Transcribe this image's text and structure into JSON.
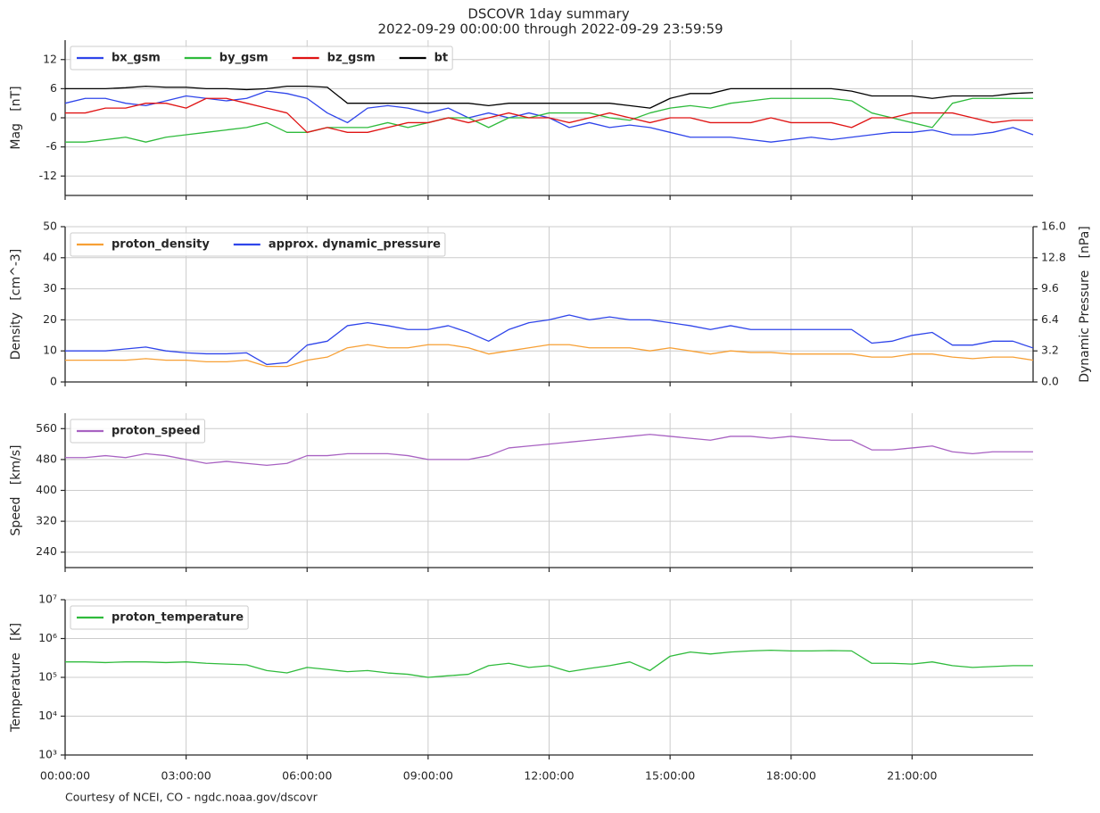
{
  "title": "DSCOVR 1day summary",
  "subtitle": "2022-09-29 00:00:00 through 2022-09-29 23:59:59",
  "footer": "Courtesy of NCEI, CO - ngdc.noaa.gov/dscovr",
  "chart_data": [
    {
      "type": "line",
      "ylabel": "Mag   [nT]",
      "legend": "upper left",
      "grid": true,
      "xlim": [
        0,
        24
      ],
      "xticks": [
        0,
        3,
        6,
        9,
        12,
        15,
        18,
        21
      ],
      "ylim": [
        -16,
        16
      ],
      "yticks": [
        -12,
        -6,
        0,
        6,
        12
      ],
      "x": [
        0,
        0.5,
        1,
        1.5,
        2,
        2.5,
        3,
        3.5,
        4,
        4.5,
        5,
        5.5,
        6,
        6.5,
        7,
        7.5,
        8,
        8.5,
        9,
        9.5,
        10,
        10.5,
        11,
        11.5,
        12,
        12.5,
        13,
        13.5,
        14,
        14.5,
        15,
        15.5,
        16,
        16.5,
        17,
        17.5,
        18,
        18.5,
        19,
        19.5,
        20,
        20.5,
        21,
        21.5,
        22,
        22.5,
        23,
        23.5,
        24
      ],
      "series": [
        {
          "name": "bx_gsm",
          "color": "#2f45ea",
          "values": [
            3,
            4,
            4,
            3,
            2.5,
            3.5,
            4.5,
            4,
            3.5,
            4,
            5.5,
            5,
            4,
            1,
            -1,
            2,
            2.5,
            2,
            1,
            2,
            0,
            1,
            0,
            1,
            0,
            -2,
            -1,
            -2,
            -1.5,
            -2,
            -3,
            -4,
            -4,
            -4,
            -4.5,
            -5,
            -4.5,
            -4,
            -4.5,
            -4,
            -3.5,
            -3,
            -3,
            -2.5,
            -3.5,
            -3.5,
            -3,
            -2,
            -3.5
          ]
        },
        {
          "name": "by_gsm",
          "color": "#2fbb3c",
          "values": [
            -5,
            -5,
            -4.5,
            -4,
            -5,
            -4,
            -3.5,
            -3,
            -2.5,
            -2,
            -1,
            -3,
            -3,
            -2,
            -2,
            -2,
            -1,
            -2,
            -1,
            0,
            0,
            -2,
            0,
            0,
            1,
            1,
            1,
            0,
            -0.5,
            1,
            2,
            2.5,
            2,
            3,
            3.5,
            4,
            4,
            4,
            4,
            3.5,
            1,
            0,
            -1,
            -2,
            3,
            4,
            4,
            4,
            4
          ]
        },
        {
          "name": "bz_gsm",
          "color": "#e01414",
          "values": [
            1,
            1,
            2,
            2,
            3,
            3,
            2,
            4,
            4,
            3,
            2,
            1,
            -3,
            -2,
            -3,
            -3,
            -2,
            -1,
            -1,
            0,
            -1,
            0,
            1,
            0,
            0,
            -1,
            0,
            1,
            0,
            -1,
            0,
            0,
            -1,
            -1,
            -1,
            0,
            -1,
            -1,
            -1,
            -2,
            0,
            0,
            1,
            1,
            1,
            0,
            -1,
            -0.5,
            -0.5
          ]
        },
        {
          "name": "bt",
          "color": "#000000",
          "values": [
            6,
            6,
            6,
            6.2,
            6.5,
            6.3,
            6.3,
            6,
            6,
            5.8,
            6,
            6.5,
            6.5,
            6.3,
            3,
            3,
            3,
            3,
            3,
            3,
            3,
            2.5,
            3,
            3,
            3,
            3,
            3,
            3,
            2.5,
            2,
            4,
            5,
            5,
            6,
            6,
            6,
            6,
            6,
            6,
            5.5,
            4.5,
            4.5,
            4.5,
            4,
            4.5,
            4.5,
            4.5,
            5,
            5.2
          ]
        }
      ]
    },
    {
      "type": "line",
      "ylabel": "Density   [cm^-3]",
      "y2label": "Dynamic Pressure   [nPa]",
      "legend": "upper left",
      "grid": true,
      "xlim": [
        0,
        24
      ],
      "xticks": [
        0,
        3,
        6,
        9,
        12,
        15,
        18,
        21
      ],
      "ylim": [
        0,
        50
      ],
      "yticks": [
        0,
        10,
        20,
        30,
        40,
        50
      ],
      "y2lim": [
        0,
        16
      ],
      "y2ticks": [
        {
          "value": 0,
          "label": "0.0"
        },
        3.2,
        6.4,
        9.6,
        12.8,
        {
          "value": 16,
          "label": "16.0"
        }
      ],
      "x": [
        0,
        0.5,
        1,
        1.5,
        2,
        2.5,
        3,
        3.5,
        4,
        4.5,
        5,
        5.5,
        6,
        6.5,
        7,
        7.5,
        8,
        8.5,
        9,
        9.5,
        10,
        10.5,
        11,
        11.5,
        12,
        12.5,
        13,
        13.5,
        14,
        14.5,
        15,
        15.5,
        16,
        16.5,
        17,
        17.5,
        18,
        18.5,
        19,
        19.5,
        20,
        20.5,
        21,
        21.5,
        22,
        22.5,
        23,
        23.5,
        24
      ],
      "series": [
        {
          "name": "proton_density",
          "color": "#f7a035",
          "values": [
            7,
            7,
            7,
            7,
            7.5,
            7,
            7,
            6.5,
            6.5,
            7,
            5,
            5,
            7,
            8,
            11,
            12,
            11,
            11,
            12,
            12,
            11,
            9,
            10,
            11,
            12,
            12,
            11,
            11,
            11,
            10,
            11,
            10,
            9,
            10,
            9.5,
            9.5,
            9,
            9,
            9,
            9,
            8,
            8,
            9,
            9,
            8,
            7.5,
            8,
            8,
            7
          ]
        },
        {
          "name": "approx. dynamic_pressure",
          "color": "#2f45ea",
          "axis": "y2",
          "values": [
            3.2,
            3.2,
            3.2,
            3.4,
            3.6,
            3.2,
            3.0,
            2.9,
            2.9,
            3.0,
            1.8,
            2.0,
            3.8,
            4.2,
            5.8,
            6.1,
            5.8,
            5.4,
            5.4,
            5.8,
            5.1,
            4.2,
            5.4,
            6.1,
            6.4,
            6.9,
            6.4,
            6.7,
            6.4,
            6.4,
            6.1,
            5.8,
            5.4,
            5.8,
            5.4,
            5.4,
            5.4,
            5.4,
            5.4,
            5.4,
            4.0,
            4.2,
            4.8,
            5.1,
            3.8,
            3.8,
            4.2,
            4.2,
            3.5
          ]
        }
      ]
    },
    {
      "type": "line",
      "ylabel": "Speed   [km/s]",
      "legend": "upper left",
      "grid": true,
      "xlim": [
        0,
        24
      ],
      "xticks": [
        0,
        3,
        6,
        9,
        12,
        15,
        18,
        21
      ],
      "ylim": [
        200,
        600
      ],
      "yticks": [
        240,
        320,
        400,
        480,
        560
      ],
      "x": [
        0,
        0.5,
        1,
        1.5,
        2,
        2.5,
        3,
        3.5,
        4,
        4.5,
        5,
        5.5,
        6,
        6.5,
        7,
        7.5,
        8,
        8.5,
        9,
        9.5,
        10,
        10.5,
        11,
        11.5,
        12,
        12.5,
        13,
        13.5,
        14,
        14.5,
        15,
        15.5,
        16,
        16.5,
        17,
        17.5,
        18,
        18.5,
        19,
        19.5,
        20,
        20.5,
        21,
        21.5,
        22,
        22.5,
        23,
        23.5,
        24
      ],
      "series": [
        {
          "name": "proton_speed",
          "color": "#a862c2",
          "values": [
            485,
            485,
            490,
            485,
            495,
            490,
            480,
            470,
            475,
            470,
            465,
            470,
            490,
            490,
            495,
            495,
            495,
            490,
            480,
            480,
            480,
            490,
            510,
            515,
            520,
            525,
            530,
            535,
            540,
            545,
            540,
            535,
            530,
            540,
            540,
            535,
            540,
            535,
            530,
            530,
            505,
            505,
            510,
            515,
            500,
            495,
            500,
            500,
            500
          ]
        }
      ]
    },
    {
      "type": "line",
      "ylabel": "Temperature   [K]",
      "legend": "upper left",
      "grid": true,
      "yscale": "log",
      "xlim": [
        0,
        24
      ],
      "xticks": [
        {
          "value": 0,
          "label": "00:00:00"
        },
        {
          "value": 3,
          "label": "03:00:00"
        },
        {
          "value": 6,
          "label": "06:00:00"
        },
        {
          "value": 9,
          "label": "09:00:00"
        },
        {
          "value": 12,
          "label": "12:00:00"
        },
        {
          "value": 15,
          "label": "15:00:00"
        },
        {
          "value": 18,
          "label": "18:00:00"
        },
        {
          "value": 21,
          "label": "21:00:00"
        }
      ],
      "ylim": [
        1000,
        10000000
      ],
      "yticks": [
        {
          "value": 1000,
          "label": "10³"
        },
        {
          "value": 10000,
          "label": "10⁴"
        },
        {
          "value": 100000,
          "label": "10⁵"
        },
        {
          "value": 1000000,
          "label": "10⁶"
        },
        {
          "value": 10000000,
          "label": "10⁷"
        }
      ],
      "x": [
        0,
        0.5,
        1,
        1.5,
        2,
        2.5,
        3,
        3.5,
        4,
        4.5,
        5,
        5.5,
        6,
        6.5,
        7,
        7.5,
        8,
        8.5,
        9,
        9.5,
        10,
        10.5,
        11,
        11.5,
        12,
        12.5,
        13,
        13.5,
        14,
        14.5,
        15,
        15.5,
        16,
        16.5,
        17,
        17.5,
        18,
        18.5,
        19,
        19.5,
        20,
        20.5,
        21,
        21.5,
        22,
        22.5,
        23,
        23.5,
        24
      ],
      "series": [
        {
          "name": "proton_temperature",
          "color": "#2fbb3c",
          "values": [
            250000,
            250000,
            240000,
            250000,
            250000,
            240000,
            250000,
            230000,
            220000,
            210000,
            150000,
            130000,
            180000,
            160000,
            140000,
            150000,
            130000,
            120000,
            100000,
            110000,
            120000,
            200000,
            230000,
            180000,
            200000,
            140000,
            170000,
            200000,
            250000,
            150000,
            350000,
            450000,
            400000,
            450000,
            480000,
            500000,
            480000,
            480000,
            490000,
            480000,
            230000,
            230000,
            220000,
            250000,
            200000,
            180000,
            190000,
            200000,
            200000
          ]
        }
      ]
    }
  ]
}
